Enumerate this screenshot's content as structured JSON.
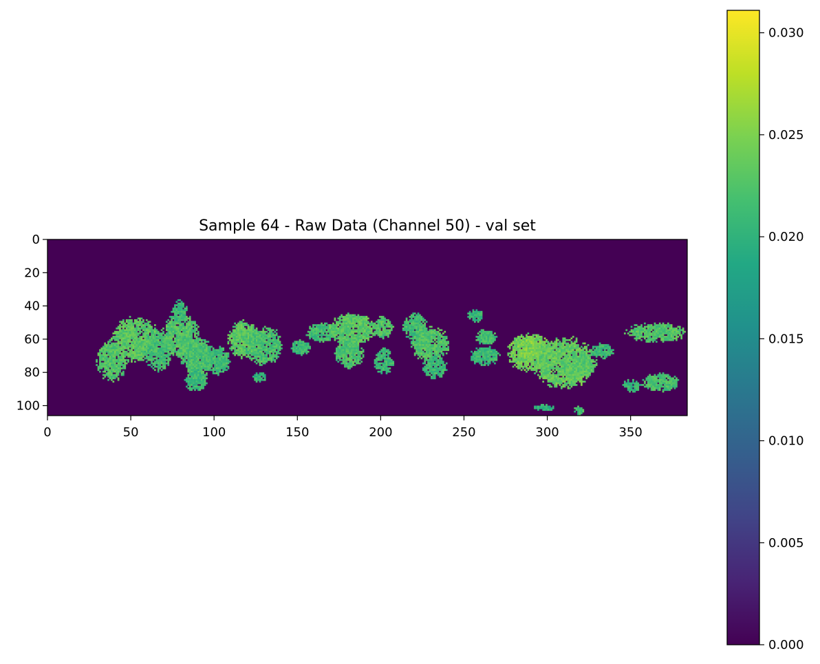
{
  "chart_data": {
    "type": "heatmap",
    "title": "Sample 64 - Raw Data (Channel 50) - val set",
    "xlabel": "",
    "ylabel": "",
    "image_shape": [
      106,
      384
    ],
    "xlim": [
      0,
      384
    ],
    "ylim": [
      106,
      0
    ],
    "x_ticks": [
      0,
      50,
      100,
      150,
      200,
      250,
      300,
      350
    ],
    "y_ticks": [
      0,
      20,
      40,
      60,
      80,
      100
    ],
    "colormap": "viridis",
    "background_value": 0.0,
    "colorbar": {
      "vmin": 0.0,
      "vmax": 0.0311,
      "ticks": [
        "0.000",
        "0.005",
        "0.010",
        "0.015",
        "0.020",
        "0.025",
        "0.030"
      ]
    },
    "regions": [
      {
        "x": [
          29,
          48
        ],
        "y": [
          60,
          86
        ],
        "value": 0.0225
      },
      {
        "x": [
          38,
          68
        ],
        "y": [
          46,
          74
        ],
        "value": 0.023
      },
      {
        "x": [
          58,
          75
        ],
        "y": [
          55,
          80
        ],
        "value": 0.0215
      },
      {
        "x": [
          68,
          92
        ],
        "y": [
          44,
          72
        ],
        "value": 0.0225
      },
      {
        "x": [
          74,
          84
        ],
        "y": [
          36,
          50
        ],
        "value": 0.021
      },
      {
        "x": [
          80,
          100
        ],
        "y": [
          58,
          84
        ],
        "value": 0.022
      },
      {
        "x": [
          82,
          96
        ],
        "y": [
          78,
          92
        ],
        "value": 0.021
      },
      {
        "x": [
          95,
          110
        ],
        "y": [
          64,
          82
        ],
        "value": 0.0215
      },
      {
        "x": [
          108,
          128
        ],
        "y": [
          48,
          72
        ],
        "value": 0.023
      },
      {
        "x": [
          118,
          142
        ],
        "y": [
          52,
          76
        ],
        "value": 0.022
      },
      {
        "x": [
          123,
          132
        ],
        "y": [
          80,
          86
        ],
        "value": 0.0205
      },
      {
        "x": [
          146,
          158
        ],
        "y": [
          60,
          70
        ],
        "value": 0.021
      },
      {
        "x": [
          155,
          175
        ],
        "y": [
          50,
          62
        ],
        "value": 0.0215
      },
      {
        "x": [
          168,
          198
        ],
        "y": [
          44,
          64
        ],
        "value": 0.023
      },
      {
        "x": [
          172,
          190
        ],
        "y": [
          60,
          78
        ],
        "value": 0.022
      },
      {
        "x": [
          195,
          208
        ],
        "y": [
          46,
          60
        ],
        "value": 0.0225
      },
      {
        "x": [
          196,
          208
        ],
        "y": [
          64,
          82
        ],
        "value": 0.021
      },
      {
        "x": [
          213,
          228
        ],
        "y": [
          44,
          62
        ],
        "value": 0.0215
      },
      {
        "x": [
          218,
          242
        ],
        "y": [
          52,
          74
        ],
        "value": 0.0225
      },
      {
        "x": [
          225,
          240
        ],
        "y": [
          70,
          84
        ],
        "value": 0.021
      },
      {
        "x": [
          252,
          262
        ],
        "y": [
          42,
          50
        ],
        "value": 0.0205
      },
      {
        "x": [
          256,
          270
        ],
        "y": [
          54,
          64
        ],
        "value": 0.0215
      },
      {
        "x": [
          253,
          272
        ],
        "y": [
          64,
          76
        ],
        "value": 0.021
      },
      {
        "x": [
          275,
          305
        ],
        "y": [
          56,
          80
        ],
        "value": 0.024
      },
      {
        "x": [
          282,
          300
        ],
        "y": [
          60,
          72
        ],
        "value": 0.025
      },
      {
        "x": [
          290,
          330
        ],
        "y": [
          58,
          90
        ],
        "value": 0.0235
      },
      {
        "x": [
          306,
          330
        ],
        "y": [
          68,
          84
        ],
        "value": 0.023
      },
      {
        "x": [
          326,
          340
        ],
        "y": [
          62,
          72
        ],
        "value": 0.021
      },
      {
        "x": [
          346,
          384
        ],
        "y": [
          50,
          62
        ],
        "value": 0.0225
      },
      {
        "x": [
          356,
          380
        ],
        "y": [
          80,
          92
        ],
        "value": 0.022
      },
      {
        "x": [
          345,
          356
        ],
        "y": [
          84,
          92
        ],
        "value": 0.0205
      },
      {
        "x": [
          292,
          305
        ],
        "y": [
          99,
          103
        ],
        "value": 0.02
      },
      {
        "x": [
          316,
          322
        ],
        "y": [
          100,
          106
        ],
        "value": 0.0215
      }
    ]
  }
}
